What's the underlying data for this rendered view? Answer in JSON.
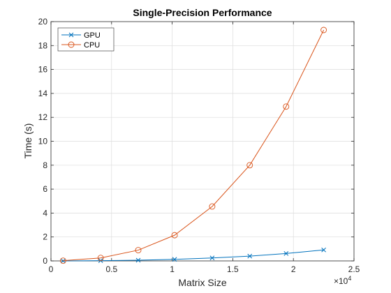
{
  "chart_data": {
    "type": "line",
    "title": "Single-Precision Performance",
    "xlabel": "Matrix Size",
    "ylabel": "Time (s)",
    "x_exponent_label": "×10",
    "x_exponent_power": "4",
    "xlim": [
      0,
      25000
    ],
    "ylim": [
      0,
      20
    ],
    "xticks": [
      0,
      5000,
      10000,
      15000,
      20000,
      25000
    ],
    "xtick_labels": [
      "0",
      "0.5",
      "1",
      "1.5",
      "2",
      "2.5"
    ],
    "yticks": [
      0,
      2,
      4,
      6,
      8,
      10,
      12,
      14,
      16,
      18,
      20
    ],
    "ytick_labels": [
      "0",
      "2",
      "4",
      "6",
      "8",
      "10",
      "12",
      "14",
      "16",
      "18",
      "20"
    ],
    "grid": true,
    "legend_position": "top-left",
    "x": [
      1000,
      4100,
      7200,
      10200,
      13300,
      16400,
      19400,
      22500
    ],
    "series": [
      {
        "name": "GPU",
        "values": [
          0.0,
          0.02,
          0.06,
          0.13,
          0.25,
          0.4,
          0.62,
          0.92
        ],
        "color": "#0072BD",
        "marker": "x"
      },
      {
        "name": "CPU",
        "values": [
          0.02,
          0.25,
          0.9,
          2.15,
          4.55,
          8.0,
          12.9,
          19.3
        ],
        "color": "#D95319",
        "marker": "o"
      }
    ]
  }
}
